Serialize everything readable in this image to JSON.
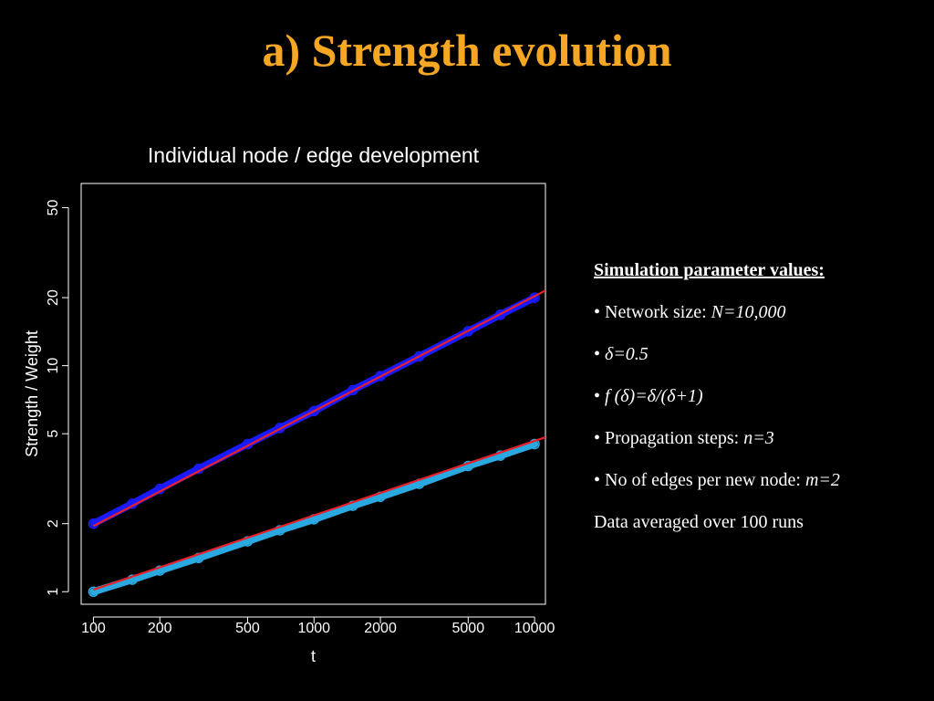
{
  "slide": {
    "title": "a) Strength evolution"
  },
  "parameters": {
    "heading": "Simulation parameter values:",
    "items": [
      {
        "prefix": "• Network size: ",
        "value": "N=10,000"
      },
      {
        "prefix": "• ",
        "value": "δ=0.5"
      },
      {
        "prefix": "• ",
        "value": "f (δ)=δ/(δ+1)"
      },
      {
        "prefix": "• Propagation steps: ",
        "value": "n=3"
      },
      {
        "prefix": "• No of edges per new node: ",
        "value": "m=2"
      }
    ],
    "footer": "Data averaged over 100 runs"
  },
  "chart_data": {
    "type": "line",
    "title": "Individual node / edge development",
    "xlabel": "t",
    "ylabel": "Strength / Weight",
    "xscale": "log",
    "yscale": "log",
    "xlim": [
      88,
      11200
    ],
    "ylim": [
      0.88,
      64
    ],
    "x_ticks": [
      100,
      200,
      500,
      1000,
      2000,
      5000,
      10000
    ],
    "y_ticks": [
      1,
      2,
      5,
      10,
      20,
      50
    ],
    "grid": false,
    "legend": "none",
    "background": "#000000",
    "axis_color": "#ffffff",
    "series": [
      {
        "color": "#1a1aff",
        "marker": "circle",
        "x": [
          100,
          150,
          200,
          300,
          500,
          700,
          1000,
          1500,
          2000,
          3000,
          5000,
          7000,
          10000
        ],
        "y": [
          2.0,
          2.45,
          2.85,
          3.5,
          4.5,
          5.3,
          6.3,
          7.8,
          9.0,
          11.0,
          14.2,
          16.8,
          20.0
        ]
      },
      {
        "color": "#2aa8e0",
        "marker": "circle",
        "x": [
          100,
          150,
          200,
          300,
          500,
          700,
          1000,
          1500,
          2000,
          3000,
          5000,
          7000,
          10000
        ],
        "y": [
          1.0,
          1.13,
          1.24,
          1.41,
          1.67,
          1.87,
          2.09,
          2.4,
          2.63,
          3.0,
          3.6,
          4.0,
          4.5
        ]
      },
      {
        "color": "#e8202a",
        "marker": "none",
        "x": [
          100,
          11200
        ],
        "y": [
          1.95,
          21.5
        ]
      },
      {
        "color": "#e8202a",
        "marker": "none",
        "x": [
          100,
          11200
        ],
        "y": [
          1.02,
          4.82
        ]
      }
    ]
  }
}
